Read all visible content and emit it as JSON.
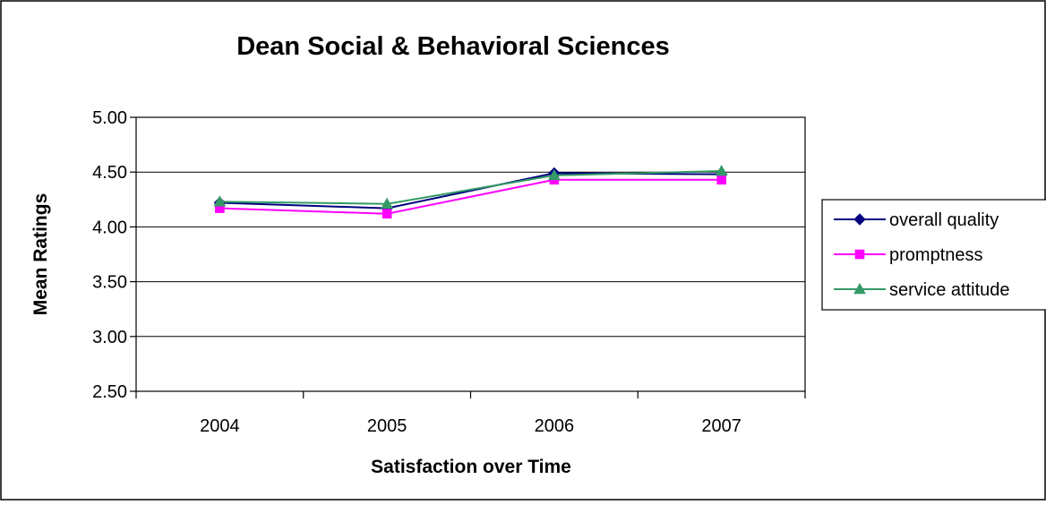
{
  "chart_data": {
    "type": "line",
    "title": "Dean Social & Behavioral Sciences",
    "xlabel": "Satisfaction over Time",
    "ylabel": "Mean Ratings",
    "categories": [
      "2004",
      "2005",
      "2006",
      "2007"
    ],
    "ylim": [
      2.5,
      5.0
    ],
    "yticks": [
      "2.50",
      "3.00",
      "3.50",
      "4.00",
      "4.50",
      "5.00"
    ],
    "grid": "horizontal",
    "legend_position": "right",
    "series": [
      {
        "name": "overall quality",
        "values": [
          4.22,
          4.17,
          4.49,
          4.48
        ],
        "color": "#000080",
        "marker": "diamond"
      },
      {
        "name": "promptness",
        "values": [
          4.17,
          4.12,
          4.43,
          4.43
        ],
        "color": "#FF00FF",
        "marker": "square"
      },
      {
        "name": "service attitude",
        "values": [
          4.23,
          4.21,
          4.47,
          4.51
        ],
        "color": "#339966",
        "marker": "triangle"
      }
    ]
  }
}
